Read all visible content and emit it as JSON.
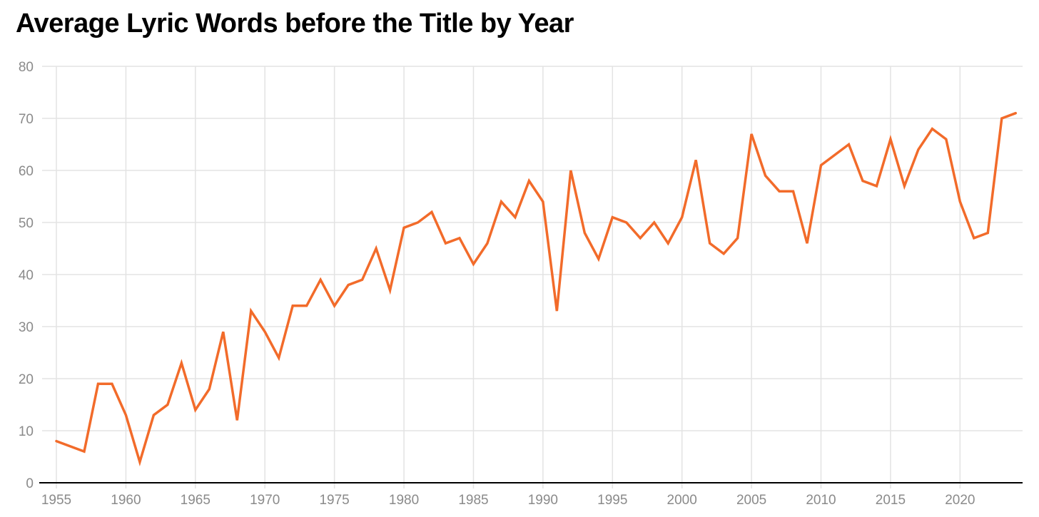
{
  "title": "Average Lyric Words before the Title by Year",
  "chart_data": {
    "type": "line",
    "title": "Average Lyric Words before the Title by Year",
    "xlabel": "",
    "ylabel": "",
    "xlim": [
      1955,
      2024
    ],
    "ylim": [
      0,
      80
    ],
    "x_ticks": [
      1955,
      1960,
      1965,
      1970,
      1975,
      1980,
      1985,
      1990,
      1995,
      2000,
      2005,
      2010,
      2015,
      2020
    ],
    "y_ticks": [
      0,
      10,
      20,
      30,
      40,
      50,
      60,
      70,
      80
    ],
    "grid": true,
    "legend": "none",
    "series": [
      {
        "color": "#f26b2a",
        "x": [
          1955,
          1957,
          1958,
          1959,
          1960,
          1961,
          1962,
          1963,
          1964,
          1965,
          1966,
          1967,
          1968,
          1969,
          1970,
          1971,
          1972,
          1973,
          1974,
          1975,
          1976,
          1977,
          1978,
          1979,
          1980,
          1981,
          1982,
          1983,
          1984,
          1985,
          1986,
          1987,
          1988,
          1989,
          1990,
          1991,
          1992,
          1993,
          1994,
          1995,
          1996,
          1997,
          1998,
          1999,
          2000,
          2001,
          2002,
          2003,
          2004,
          2005,
          2006,
          2007,
          2008,
          2009,
          2010,
          2011,
          2012,
          2013,
          2014,
          2015,
          2016,
          2017,
          2018,
          2019,
          2020,
          2021,
          2022,
          2023,
          2024
        ],
        "values": [
          8,
          6,
          19,
          19,
          13,
          4,
          13,
          15,
          23,
          14,
          18,
          29,
          12,
          33,
          29,
          24,
          34,
          34,
          39,
          34,
          38,
          39,
          45,
          37,
          49,
          50,
          52,
          46,
          47,
          42,
          46,
          54,
          51,
          58,
          54,
          33,
          60,
          48,
          43,
          51,
          50,
          47,
          50,
          46,
          51,
          62,
          46,
          44,
          47,
          67,
          59,
          56,
          56,
          46,
          61,
          63,
          65,
          58,
          57,
          66,
          57,
          64,
          68,
          66,
          54,
          47,
          48,
          70,
          71
        ]
      }
    ]
  },
  "colors": {
    "line": "#f26b2a",
    "grid": "#e3e3e3",
    "axis": "#000000",
    "tick_text": "#8a8a8a"
  }
}
